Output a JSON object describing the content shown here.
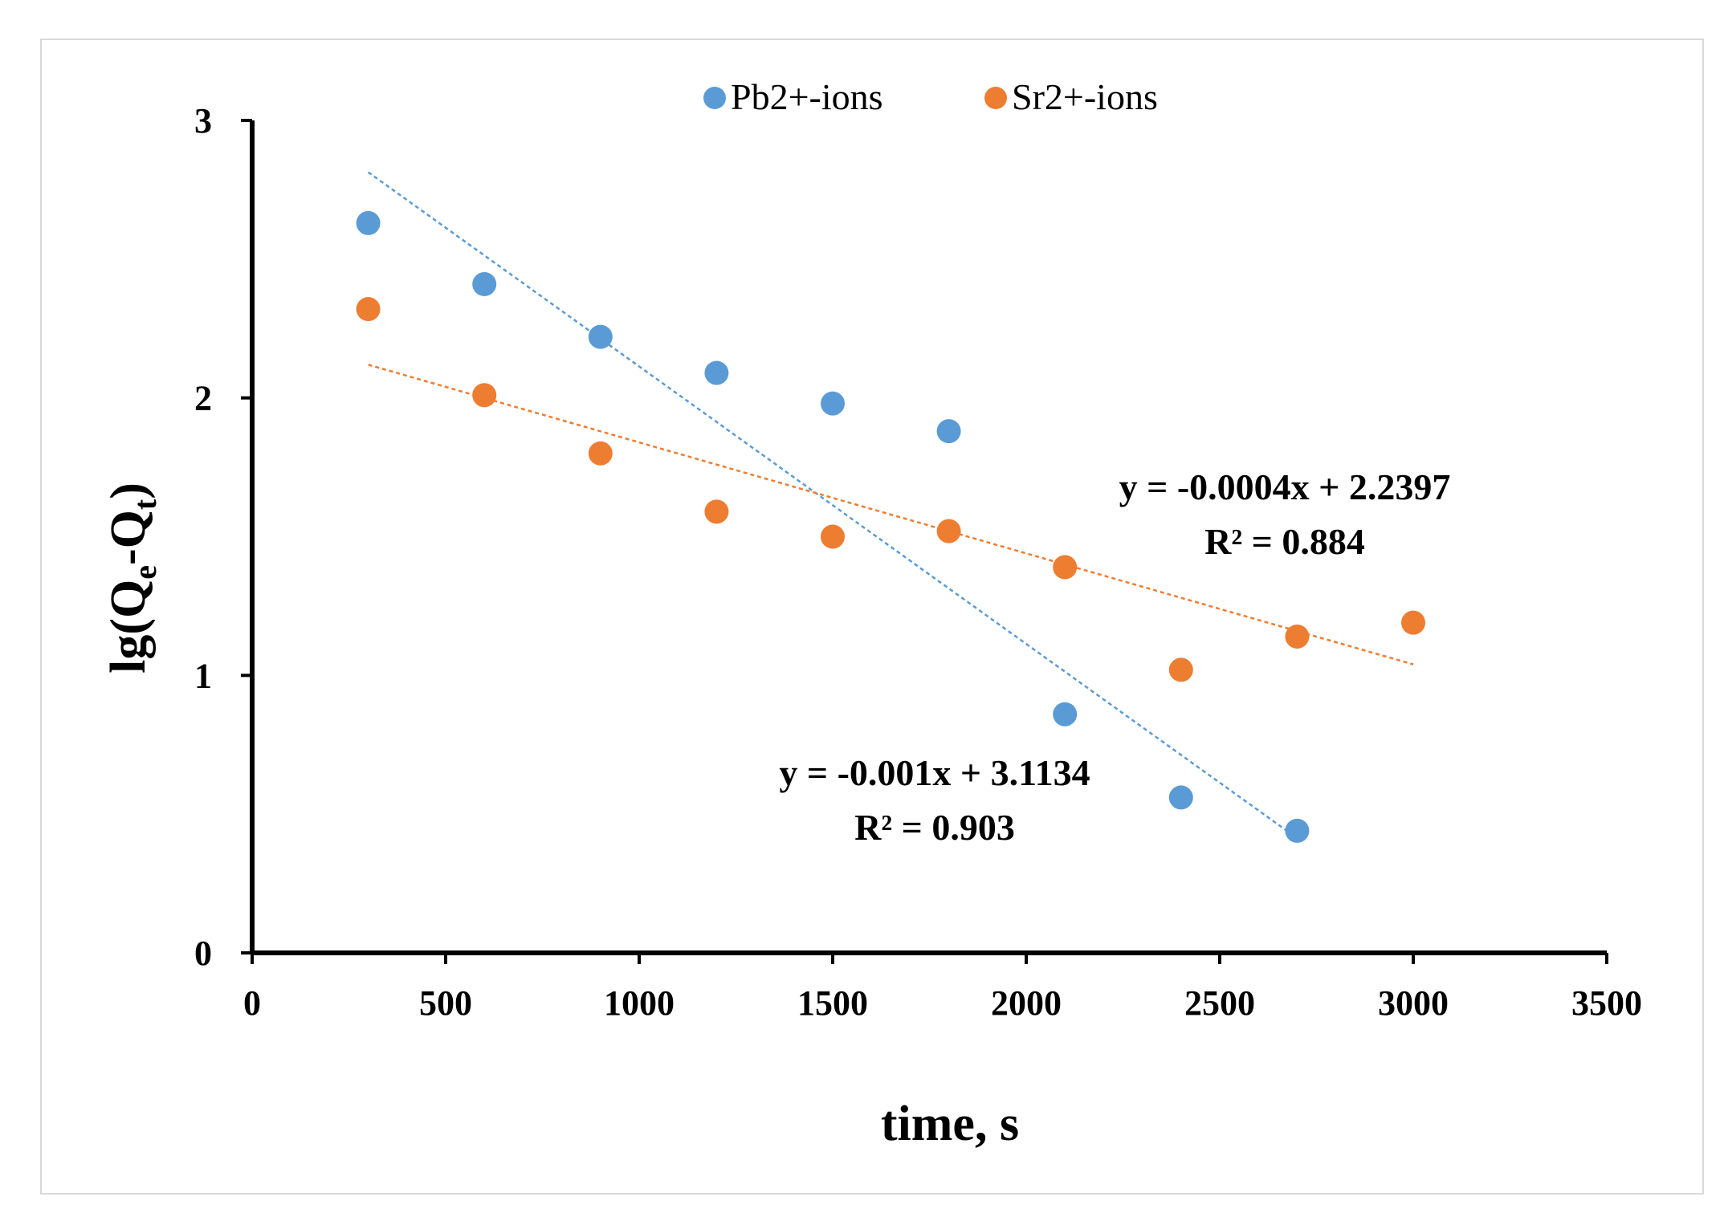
{
  "chart_data": {
    "type": "scatter",
    "title": "",
    "xlabel": "time, s",
    "ylabel_parts": {
      "base": "lg(Q",
      "sub1": "e",
      "mid": "-Q",
      "sub2": "t",
      "end": ")"
    },
    "xlim": [
      0,
      3500
    ],
    "ylim": [
      0,
      3
    ],
    "xticks": [
      0,
      500,
      1000,
      1500,
      2000,
      2500,
      3000,
      3500
    ],
    "yticks": [
      0,
      1,
      2,
      3
    ],
    "grid": false,
    "legend_position": "top-center",
    "series": [
      {
        "name": "Pb2+-ions",
        "color": "#5b9bd5",
        "x": [
          300,
          600,
          900,
          1200,
          1500,
          1800,
          2100,
          2400,
          2700
        ],
        "y": [
          2.63,
          2.41,
          2.22,
          2.09,
          1.98,
          1.88,
          0.86,
          0.56,
          0.44
        ],
        "trendline": {
          "slope": -0.001,
          "intercept": 3.1134,
          "x_range": [
            300,
            2700
          ]
        },
        "equation": "y = -0.001x + 3.1134",
        "r_squared": "R² = 0.903"
      },
      {
        "name": "Sr2+-ions",
        "color": "#ed7d31",
        "x": [
          300,
          600,
          900,
          1200,
          1500,
          1800,
          2100,
          2400,
          2700,
          3000
        ],
        "y": [
          2.32,
          2.01,
          1.8,
          1.59,
          1.5,
          1.52,
          1.39,
          1.02,
          1.14,
          1.19
        ],
        "trendline": {
          "slope": -0.0004,
          "intercept": 2.2397,
          "x_range": [
            300,
            3000
          ]
        },
        "equation": "y = -0.0004x + 2.2397",
        "r_squared": "R² = 0.884"
      }
    ]
  }
}
